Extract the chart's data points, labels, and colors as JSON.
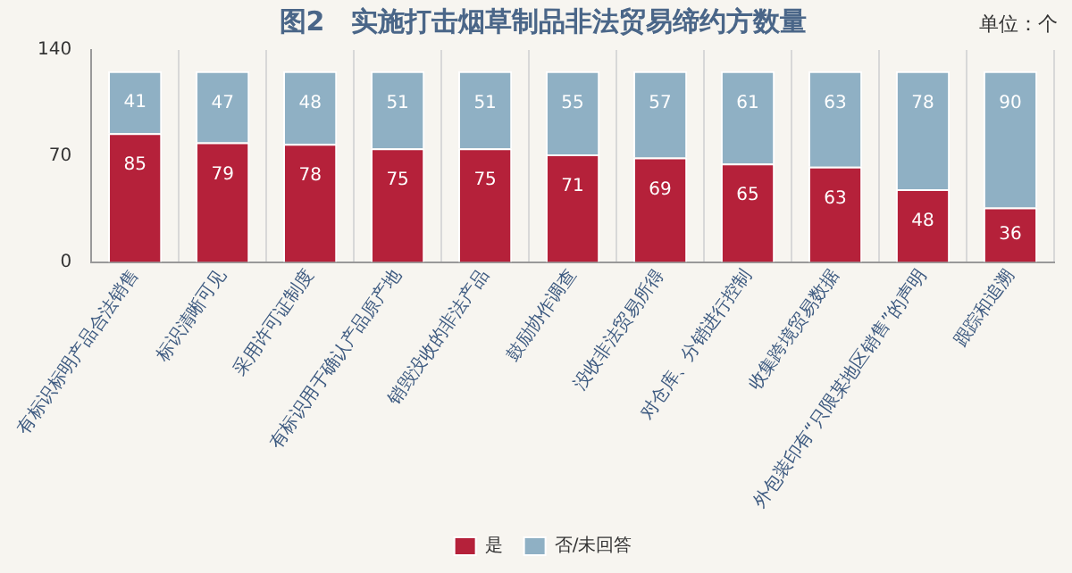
{
  "chart_data": {
    "type": "bar",
    "title": "图2　实施打击烟草制品非法贸易缔约方数量",
    "annotations": [
      "单位：个"
    ],
    "categories": [
      "有标识标明产品合法销售",
      "标识清晰可见",
      "采用许可证制度",
      "有标识用于确认产品原产地",
      "销毁没收的非法产品",
      "鼓励协作调查",
      "没收非法贸易所得",
      "对仓库、分销进行控制",
      "收集跨境贸易数据",
      "外包装印有“只限某地区销售”的声明",
      "跟踪和追溯"
    ],
    "series": [
      {
        "name": "是",
        "color": "#b5213a",
        "values": [
          85,
          79,
          78,
          75,
          75,
          71,
          69,
          65,
          63,
          48,
          36
        ]
      },
      {
        "name": "否/未回答",
        "color": "#8fb0c4",
        "values": [
          41,
          47,
          48,
          51,
          51,
          55,
          57,
          61,
          63,
          78,
          90
        ]
      }
    ],
    "stacked": true,
    "ylim": [
      0,
      140
    ],
    "yticks": [
      0,
      70,
      140
    ],
    "grid": "x",
    "legend": "bottom",
    "data_labels": true
  }
}
